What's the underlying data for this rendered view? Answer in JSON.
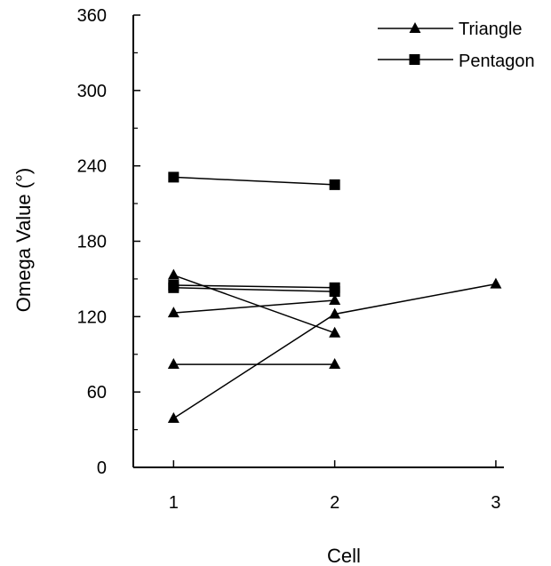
{
  "chart_data": {
    "type": "line",
    "xlabel": "Cell",
    "ylabel": "Omega Value (°)",
    "xlim": [
      0.75,
      3.05
    ],
    "ylim": [
      0,
      360
    ],
    "x_ticks": [
      "1",
      "2",
      "3"
    ],
    "y_ticks": [
      "0",
      "60",
      "120",
      "180",
      "240",
      "300",
      "360"
    ],
    "grid": false,
    "legend_position": "top-right",
    "legend": [
      {
        "label": "Triangle",
        "marker": "triangle"
      },
      {
        "label": "Pentagon",
        "marker": "square"
      }
    ],
    "series": [
      {
        "marker": "square",
        "points": [
          [
            1,
            231
          ],
          [
            2,
            225
          ]
        ]
      },
      {
        "marker": "square",
        "points": [
          [
            1,
            145
          ],
          [
            2,
            143
          ]
        ]
      },
      {
        "marker": "square",
        "points": [
          [
            1,
            143
          ],
          [
            2,
            140
          ]
        ]
      },
      {
        "marker": "triangle",
        "points": [
          [
            1,
            153
          ],
          [
            2,
            107
          ]
        ]
      },
      {
        "marker": "triangle",
        "points": [
          [
            1,
            123
          ],
          [
            2,
            133
          ]
        ]
      },
      {
        "marker": "triangle",
        "points": [
          [
            1,
            82
          ],
          [
            2,
            82
          ]
        ]
      },
      {
        "marker": "triangle",
        "points": [
          [
            1,
            39
          ],
          [
            2,
            122
          ],
          [
            3,
            146
          ]
        ]
      }
    ]
  }
}
